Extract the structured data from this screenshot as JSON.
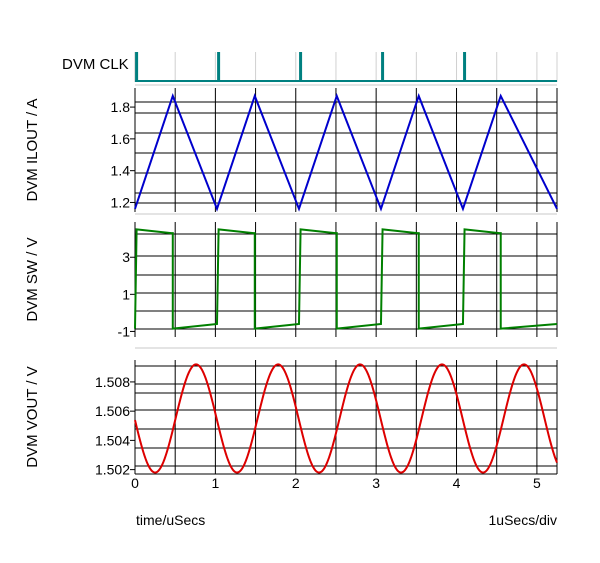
{
  "chart_data": {
    "type": "line",
    "x_unit_label": "time/uSecs",
    "x_scale_label": "1uSecs/div",
    "xlim": [
      0,
      5.25
    ],
    "x_ticks": [
      "0",
      "1",
      "2",
      "3",
      "4",
      "5"
    ],
    "grid": true,
    "panels": [
      {
        "name": "clk",
        "ylabel": "DVM CLK",
        "color": "#008080",
        "pulses_x": [
          0.02,
          1.04,
          2.06,
          3.08,
          4.1
        ],
        "ylim": [
          0,
          1
        ],
        "y_ticks": []
      },
      {
        "name": "ilout",
        "ylabel": "DVM ILOUT / A",
        "color": "#0000cc",
        "ylim": [
          1.14,
          1.92
        ],
        "y_ticks": [
          "1.2",
          "1.4",
          "1.6",
          "1.8"
        ],
        "x": [
          0,
          0.47,
          1.02,
          1.49,
          2.04,
          2.51,
          3.06,
          3.53,
          4.08,
          4.55,
          5.25
        ],
        "values": [
          1.16,
          1.87,
          1.16,
          1.87,
          1.16,
          1.87,
          1.16,
          1.87,
          1.16,
          1.87,
          1.16
        ]
      },
      {
        "name": "sw",
        "ylabel": "DVM SW / V",
        "color": "#008000",
        "ylim": [
          -1.3,
          4.9
        ],
        "y_ticks": [
          "-1",
          "1",
          "3"
        ],
        "x": [
          0,
          0.02,
          0.45,
          0.47,
          0.47,
          1.02,
          1.04,
          1.47,
          1.49,
          1.49,
          2.04,
          2.06,
          2.49,
          2.51,
          2.51,
          3.06,
          3.08,
          3.51,
          3.53,
          3.53,
          4.08,
          4.1,
          4.53,
          4.55,
          4.55,
          5.25
        ],
        "values": [
          -0.85,
          4.5,
          4.3,
          4.3,
          -0.85,
          -0.6,
          4.5,
          4.3,
          4.3,
          -0.85,
          -0.6,
          4.5,
          4.3,
          4.3,
          -0.85,
          -0.6,
          4.5,
          4.3,
          4.3,
          -0.85,
          -0.6,
          4.5,
          4.3,
          4.3,
          -0.85,
          -0.6
        ]
      },
      {
        "name": "vout",
        "ylabel": "DVM VOUT / V",
        "color": "#dd0000",
        "ylim": [
          1.5017,
          1.5095
        ],
        "y_ticks": [
          "1.502",
          "1.504",
          "1.506",
          "1.508"
        ],
        "offset": 1.5055,
        "amplitude": 0.0037,
        "period": 1.02,
        "peak_x": 0.76
      }
    ]
  }
}
